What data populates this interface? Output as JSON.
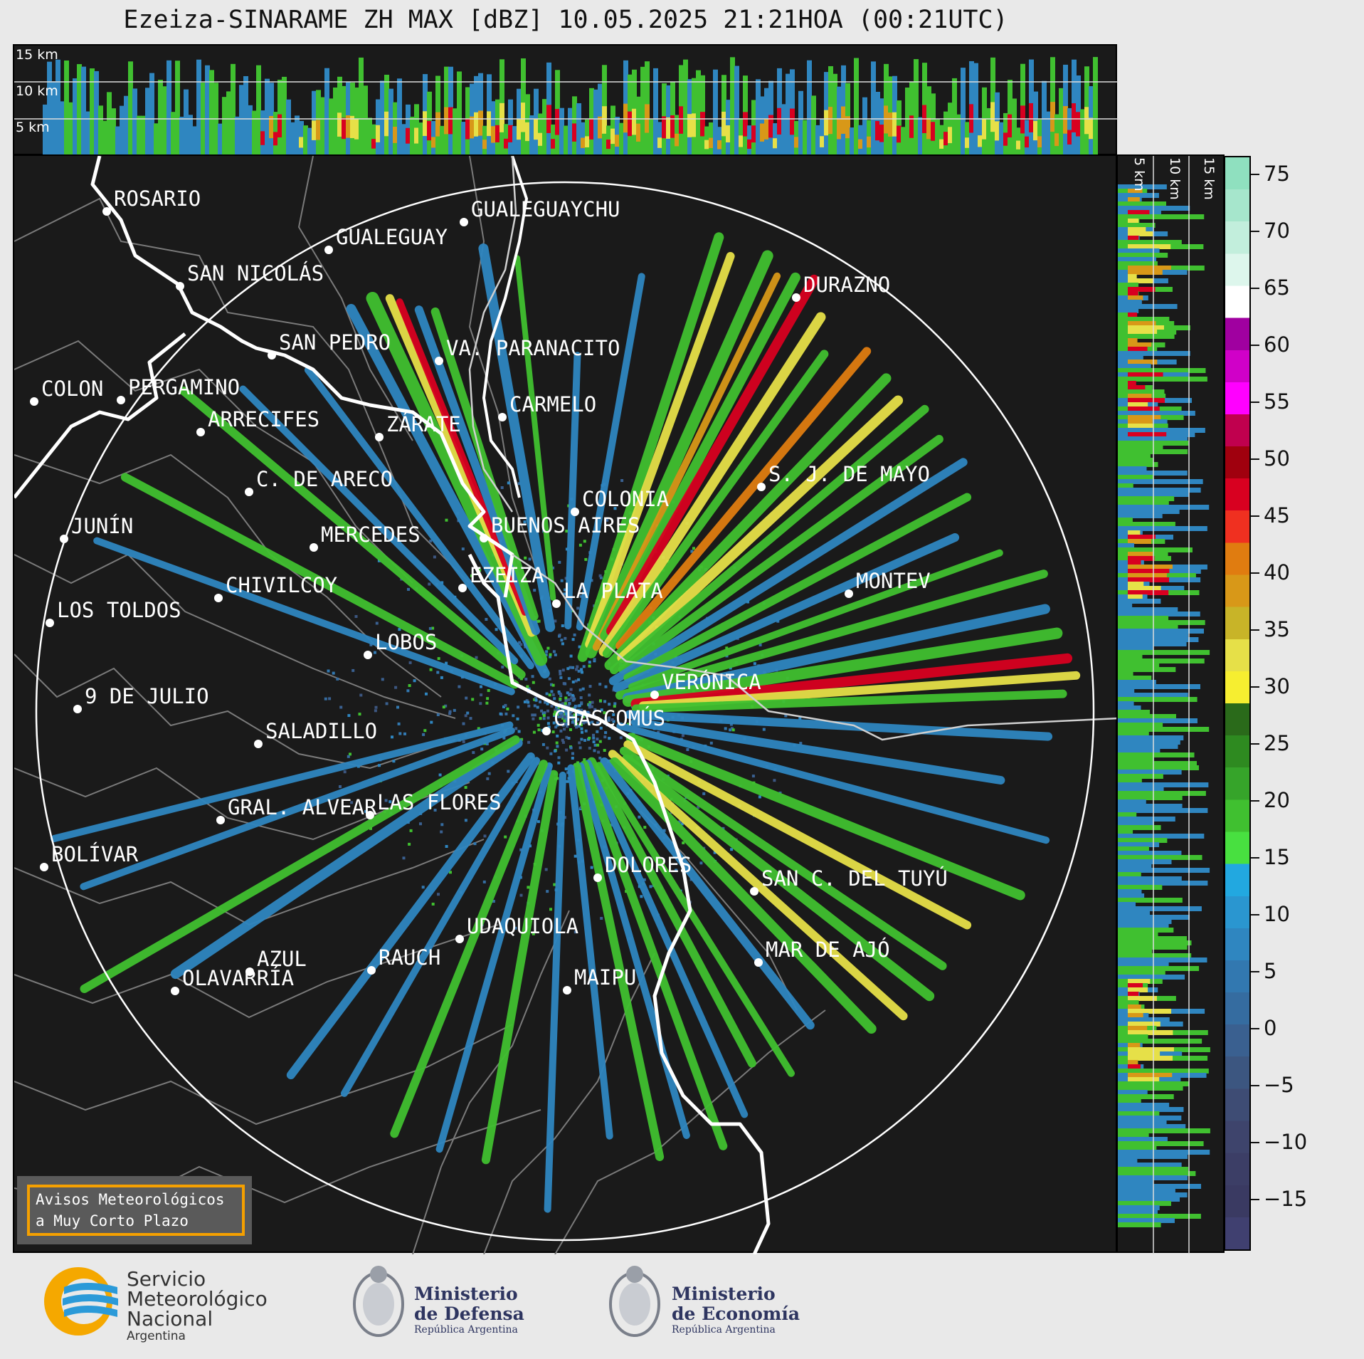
{
  "title": "Ezeiza-SINARAME ZH MAX [dBZ] 10.05.2025 21:21HOA (00:21UTC)",
  "altitude_labels": [
    "15 km",
    "10 km",
    "5 km"
  ],
  "side_altitude_labels": [
    "5 km",
    "10 km",
    "15 km"
  ],
  "colorbar": {
    "ticks": [
      "75",
      "70",
      "65",
      "60",
      "55",
      "50",
      "45",
      "40",
      "35",
      "30",
      "25",
      "20",
      "15",
      "10",
      "5",
      "0",
      "−5",
      "−10",
      "−15"
    ],
    "colors": [
      "#8fe0bf",
      "#a6e6cc",
      "#c2eedc",
      "#ddf6ec",
      "#ffffff",
      "#a000a0",
      "#d000c8",
      "#ff00ff",
      "#c0004e",
      "#a0000e",
      "#d80020",
      "#f03020",
      "#e07c10",
      "#d89818",
      "#c8b428",
      "#e6e048",
      "#f6ee30",
      "#2a6a1a",
      "#2e8a20",
      "#36a42a",
      "#40c030",
      "#48e040",
      "#22a8e0",
      "#2a96d0",
      "#2f86c0",
      "#3278b0",
      "#356ca0",
      "#3a6090",
      "#3c5680",
      "#3e4c74",
      "#3e446c",
      "#3c3e66",
      "#3a3a62",
      "#404070"
    ]
  },
  "cities": [
    {
      "name": "ROSARIO"
    },
    {
      "name": "GUALEGUAYCHU"
    },
    {
      "name": "GUALEGUAY"
    },
    {
      "name": "SAN NICOLÁS"
    },
    {
      "name": "DURAZNO"
    },
    {
      "name": "SAN PEDRO"
    },
    {
      "name": "VA. PARANACITO"
    },
    {
      "name": "COLON"
    },
    {
      "name": "PERGAMINO"
    },
    {
      "name": "CARMELO"
    },
    {
      "name": "ARRECIFES"
    },
    {
      "name": "ZÁRATE"
    },
    {
      "name": "S. J. DE MAYO"
    },
    {
      "name": "C. DE ARECO"
    },
    {
      "name": "COLONIA"
    },
    {
      "name": "JUNÍN"
    },
    {
      "name": "MERCEDES"
    },
    {
      "name": "BUENOS AIRES"
    },
    {
      "name": "EZEIZA"
    },
    {
      "name": "MONTEV"
    },
    {
      "name": "CHIVILCOY"
    },
    {
      "name": "LA PLATA"
    },
    {
      "name": "LOS TOLDOS"
    },
    {
      "name": "LOBOS"
    },
    {
      "name": "VERÓNICA"
    },
    {
      "name": "9 DE JULIO"
    },
    {
      "name": "CHASCOMÚS"
    },
    {
      "name": "SALADILLO"
    },
    {
      "name": "GRAL. ALVEAR"
    },
    {
      "name": "LAS FLORES"
    },
    {
      "name": "BOLÍVAR"
    },
    {
      "name": "DOLORES"
    },
    {
      "name": "SAN C. DEL TUYÚ"
    },
    {
      "name": "UDAQUIOLA"
    },
    {
      "name": "MAR DE AJÓ"
    },
    {
      "name": "AZUL"
    },
    {
      "name": "RAUCH"
    },
    {
      "name": "MAIPU"
    },
    {
      "name": "OLAVARRÍA"
    }
  ],
  "warning_box": {
    "line1": "Avisos Meteorológicos",
    "line2": "a Muy Corto Plazo"
  },
  "logos": {
    "smn": {
      "line1": "Servicio",
      "line2": "Meteorológico",
      "line3": "Nacional",
      "line4": "Argentina"
    },
    "defensa": {
      "line1": "Ministerio",
      "line2": "de Defensa",
      "line3": "República Argentina"
    },
    "economia": {
      "line1": "Ministerio",
      "line2": "de Economía",
      "line3": "República Argentina"
    }
  }
}
